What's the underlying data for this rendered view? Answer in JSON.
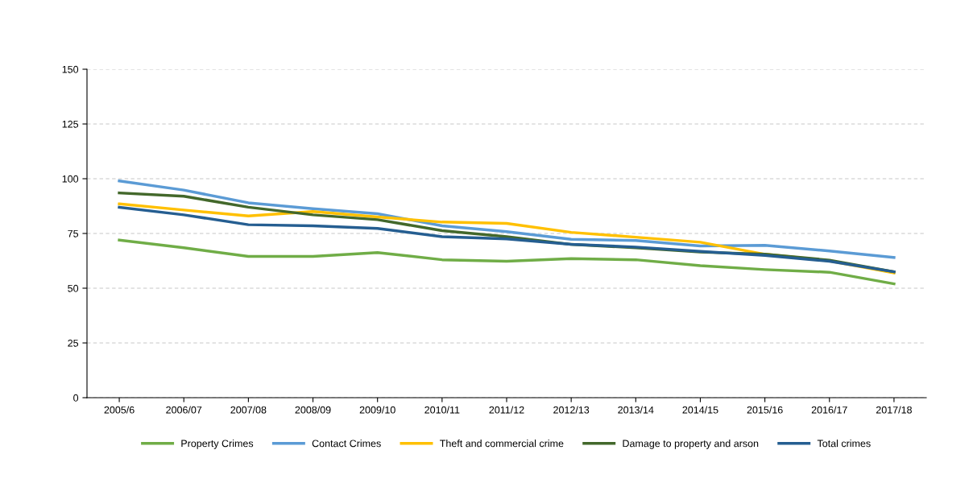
{
  "chart_data": {
    "type": "line",
    "categories": [
      "2005/6",
      "2006/07",
      "2007/08",
      "2008/09",
      "2009/10",
      "2010/11",
      "2011/12",
      "2012/13",
      "2013/14",
      "2014/15",
      "2015/16",
      "2016/17",
      "2017/18"
    ],
    "series": [
      {
        "name": "Property Crimes",
        "color": "#70ad47",
        "values": [
          72,
          68.5,
          64.5,
          64.5,
          66.3,
          63,
          62.3,
          63.5,
          63,
          60.3,
          58.5,
          57.3,
          52
        ]
      },
      {
        "name": "Contact Crimes",
        "color": "#5b9bd5",
        "values": [
          99,
          94.8,
          89,
          86.3,
          84,
          78.5,
          75.8,
          72.3,
          71.8,
          69.3,
          69.6,
          67,
          64
        ]
      },
      {
        "name": "Theft and commercial crime",
        "color": "#ffc000",
        "values": [
          88.5,
          85.7,
          83,
          85,
          82.5,
          80.2,
          79.6,
          75.5,
          73.3,
          71,
          65.5,
          62.5,
          57
        ]
      },
      {
        "name": "Damage to property and arson",
        "color": "#43682b",
        "values": [
          93.5,
          92,
          87,
          83.5,
          81.3,
          76.3,
          73.5,
          70,
          68.5,
          66.5,
          65.5,
          62.8,
          57.5
        ]
      },
      {
        "name": "Total crimes",
        "color": "#255e91",
        "values": [
          87,
          83.5,
          79,
          78.5,
          77.3,
          73.5,
          72.5,
          70,
          68.8,
          66.8,
          65,
          62.3,
          57.5
        ]
      }
    ],
    "ylim": [
      0,
      150
    ],
    "yticks": [
      0,
      25,
      50,
      75,
      100,
      125,
      150
    ],
    "grid": "y",
    "legend": "bottom",
    "marker": "none",
    "line_style": "solid"
  }
}
